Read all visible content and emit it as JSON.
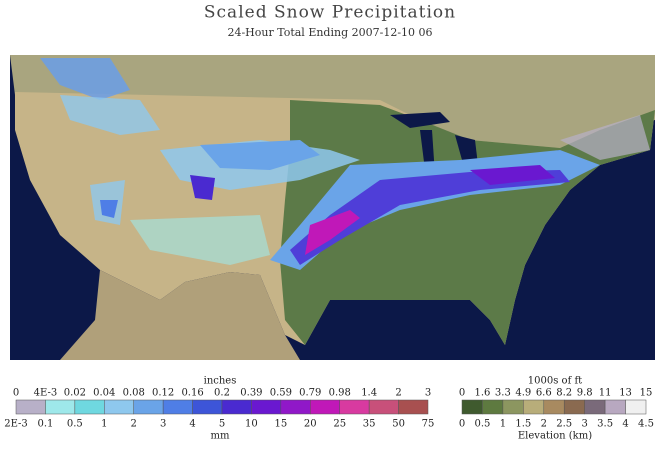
{
  "header": {
    "title": "Scaled Snow Precipitation",
    "subtitle": "24-Hour Total Ending 2007-12-10 06"
  },
  "precip_legend": {
    "top_title": "inches",
    "bottom_title": "mm",
    "top_labels": [
      "0",
      "4E-3",
      "0.02",
      "0.04",
      "0.08",
      "0.12",
      "0.16",
      "0.2",
      "0.39",
      "0.59",
      "0.79",
      "0.98",
      "1.4",
      "2",
      "3"
    ],
    "bottom_labels": [
      "2E-3",
      "0.1",
      "0.5",
      "1",
      "2",
      "3",
      "4",
      "5",
      "10",
      "15",
      "20",
      "25",
      "35",
      "50",
      "75"
    ],
    "colors": [
      "#b8b0c8",
      "#9ee8ea",
      "#6fd8e0",
      "#8ec8ee",
      "#6aa4e8",
      "#4f7ee6",
      "#3d55d8",
      "#4a2ad0",
      "#6a18d0",
      "#9018c8",
      "#c018b8",
      "#d83aa0",
      "#c8507a",
      "#a85050"
    ]
  },
  "elev_legend": {
    "top_title": "1000s of ft",
    "bottom_title": "Elevation (km)",
    "top_labels": [
      "0",
      "1.6",
      "3.3",
      "4.9",
      "6.6",
      "8.2",
      "9.8",
      "11",
      "13",
      "15"
    ],
    "bottom_labels": [
      "0",
      "0.5",
      "1",
      "1.5",
      "2",
      "2.5",
      "3",
      "3.5",
      "4",
      "4.5"
    ],
    "colors": [
      "#3f5a2e",
      "#5e7a40",
      "#8c9660",
      "#b8ad7a",
      "#a88a60",
      "#8a6a50",
      "#7a6a7a",
      "#b8a8c0",
      "#f0f0f0"
    ]
  }
}
